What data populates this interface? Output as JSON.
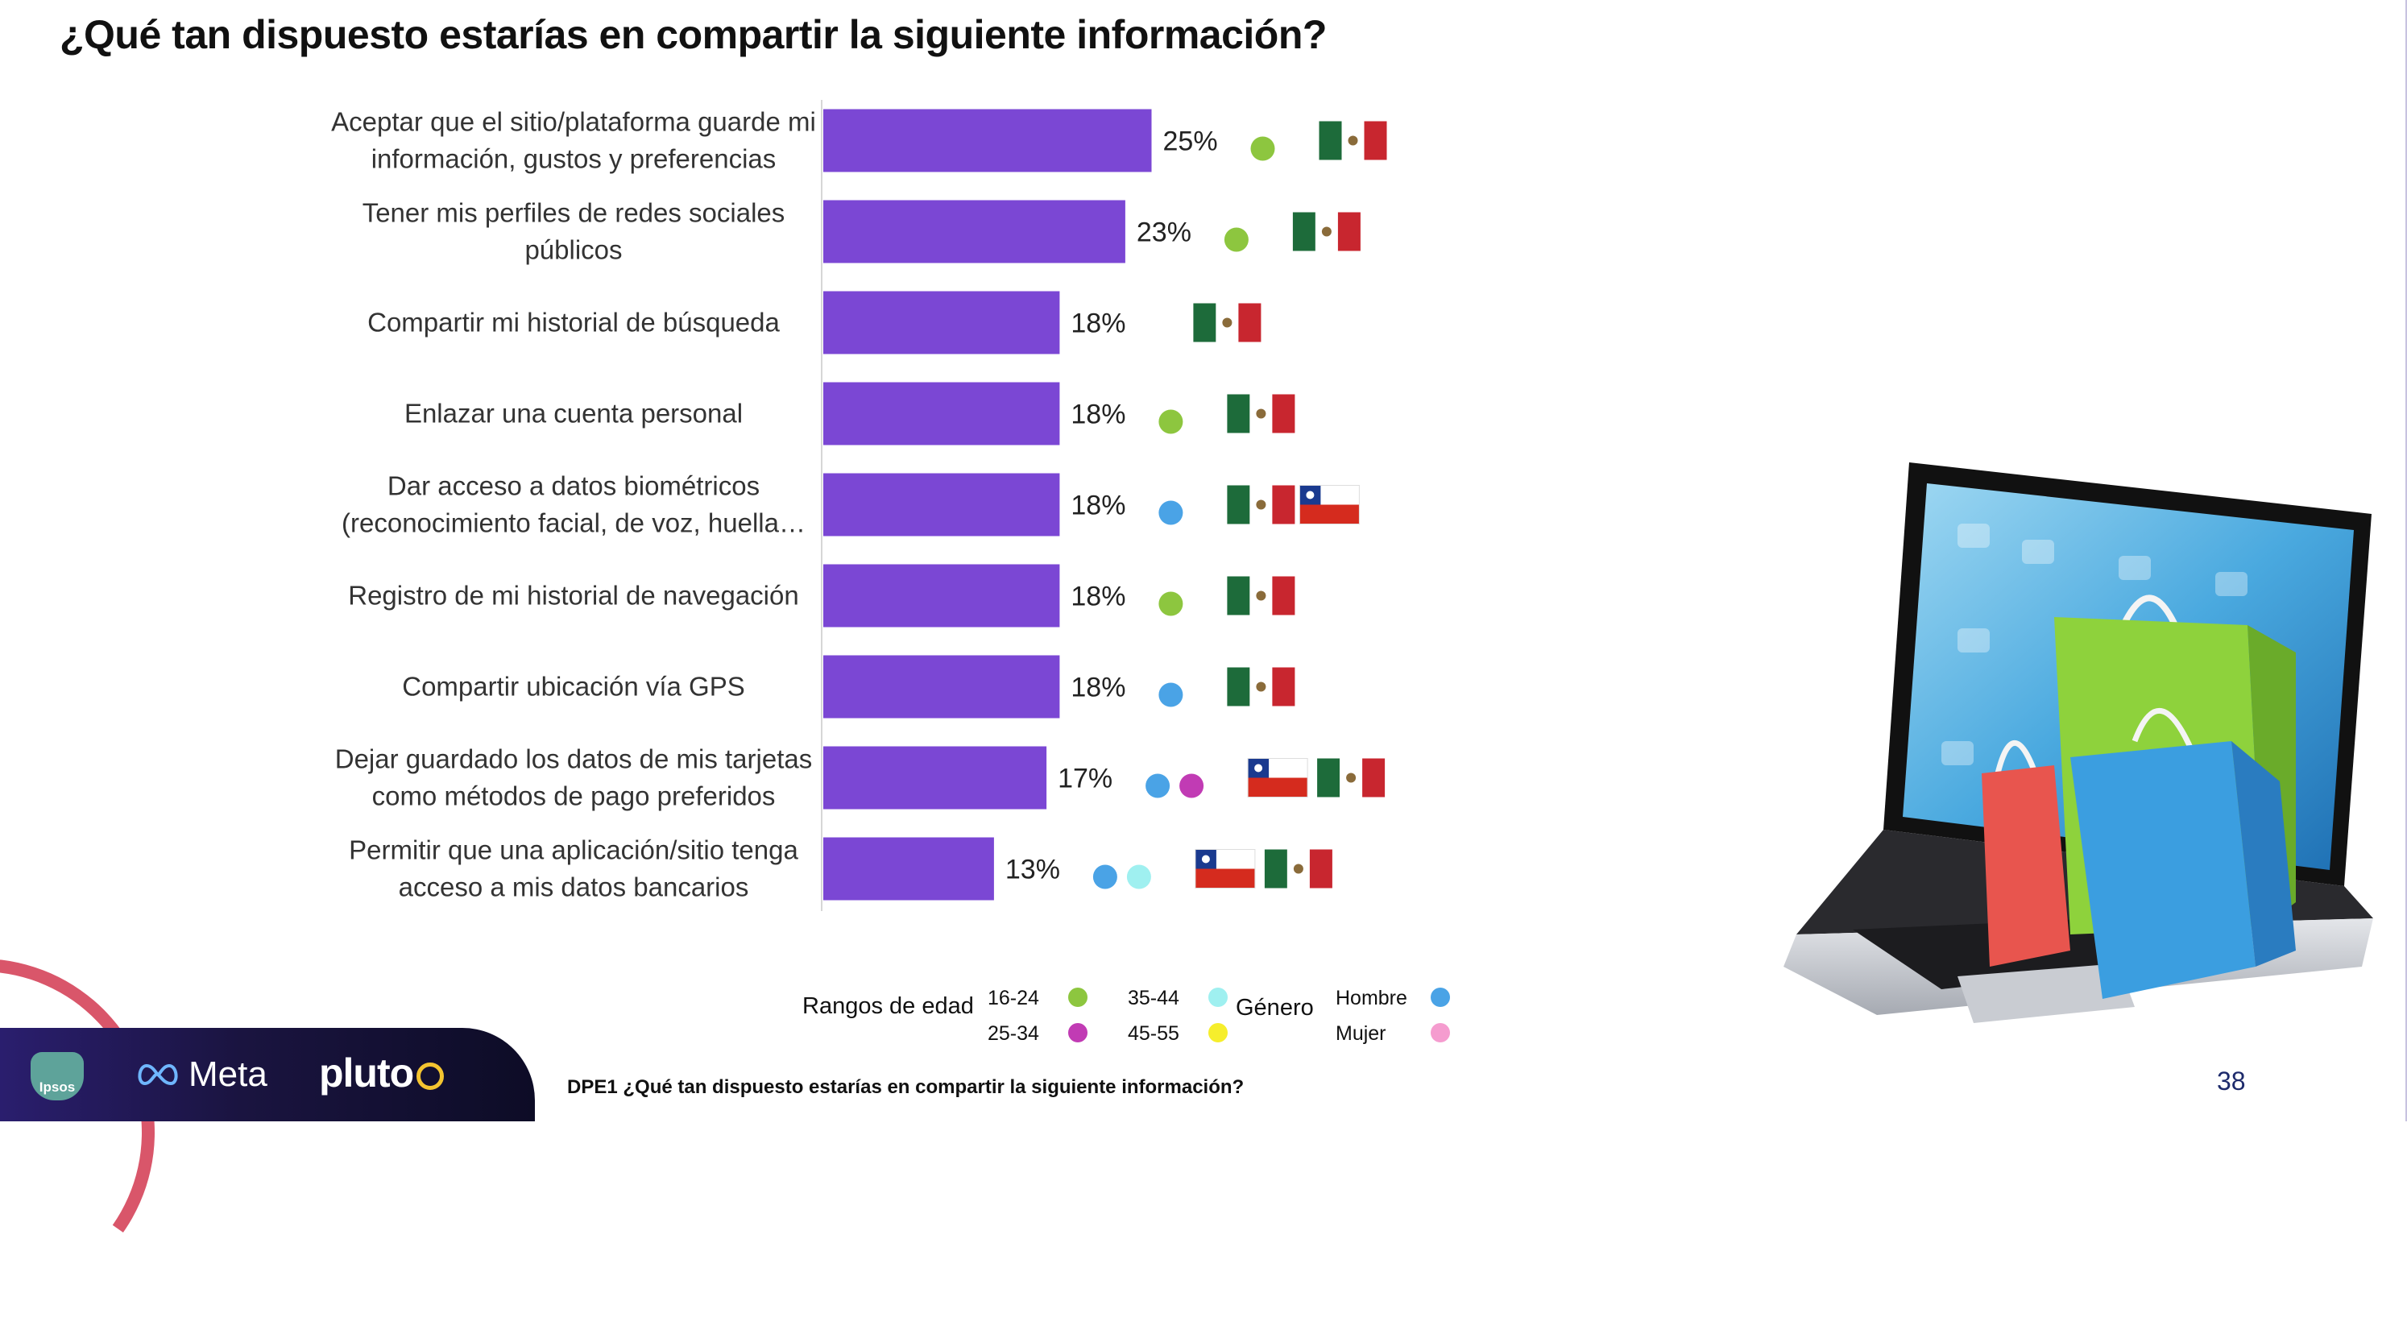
{
  "title": "¿Qué tan dispuesto estarías en compartir la siguiente información?",
  "chart_data": {
    "type": "bar",
    "orientation": "horizontal",
    "categories": [
      [
        "Aceptar que el sitio/plataforma guarde mi",
        "información, gustos y preferencias"
      ],
      [
        "Tener mis perfiles de redes sociales",
        "públicos"
      ],
      [
        "Compartir mi historial de búsqueda"
      ],
      [
        "Enlazar una cuenta personal"
      ],
      [
        "Dar acceso a datos biométricos",
        "(reconocimiento facial, de voz, huella…"
      ],
      [
        "Registro de mi historial de navegación"
      ],
      [
        "Compartir ubicación vía GPS"
      ],
      [
        "Dejar guardado los datos de mis tarjetas",
        "como métodos de pago preferidos"
      ],
      [
        "Permitir que una aplicación/sitio tenga",
        "acceso a mis datos bancarios"
      ]
    ],
    "values": [
      25,
      23,
      18,
      18,
      18,
      18,
      18,
      17,
      13
    ],
    "value_labels": [
      "25%",
      "23%",
      "18%",
      "18%",
      "18%",
      "18%",
      "18%",
      "17%",
      "13%"
    ],
    "bar_color": "#7b47d4",
    "markers": [
      {
        "dots": [
          "16-24"
        ],
        "flags": [
          "mexico"
        ]
      },
      {
        "dots": [
          "16-24"
        ],
        "flags": [
          "mexico"
        ]
      },
      {
        "dots": [],
        "flags": [
          "mexico"
        ]
      },
      {
        "dots": [
          "16-24"
        ],
        "flags": [
          "mexico"
        ]
      },
      {
        "dots": [
          "Hombre"
        ],
        "flags": [
          "mexico",
          "chile"
        ]
      },
      {
        "dots": [
          "16-24"
        ],
        "flags": [
          "mexico"
        ]
      },
      {
        "dots": [
          "Hombre"
        ],
        "flags": [
          "mexico"
        ]
      },
      {
        "dots": [
          "Hombre",
          "25-34"
        ],
        "flags": [
          "chile",
          "mexico"
        ]
      },
      {
        "dots": [
          "Hombre",
          "35-44"
        ],
        "flags": [
          "chile",
          "mexico"
        ]
      }
    ],
    "legend": {
      "age_title": "Rangos de edad",
      "age_items": [
        {
          "label": "16-24",
          "color": "#8dc63f"
        },
        {
          "label": "35-44",
          "color": "#9ff0f0"
        },
        {
          "label": "25-34",
          "color": "#c13bb4"
        },
        {
          "label": "45-55",
          "color": "#f6ee2c"
        }
      ],
      "gender_title": "Género",
      "gender_items": [
        {
          "label": "Hombre",
          "color": "#4aa3e6"
        },
        {
          "label": "Mujer",
          "color": "#f59ccf"
        }
      ]
    }
  },
  "footer": {
    "footnote": "DPE1 ¿Qué tan dispuesto estarías en compartir la siguiente información?",
    "page_number": "38",
    "ipsos_label": "Ipsos",
    "meta_label": "Meta",
    "pluto_label": "pluto"
  }
}
